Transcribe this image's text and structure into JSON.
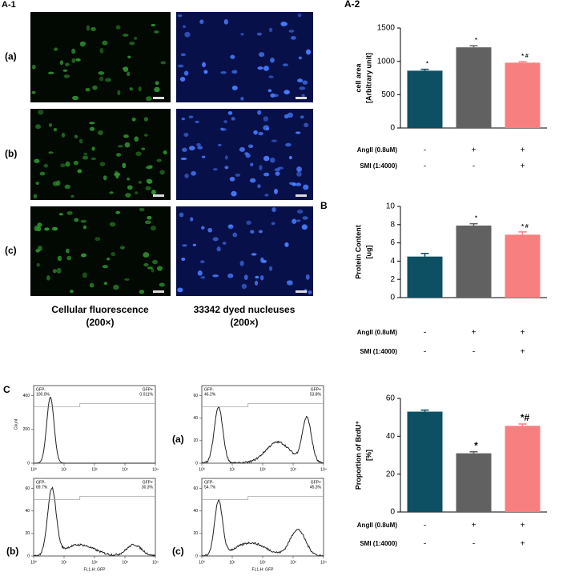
{
  "panel_a1": {
    "label": "A-1",
    "rows": [
      "(a)",
      "(b)",
      "(c)"
    ],
    "captions": [
      [
        "Cellular fluorescence",
        "(200×)"
      ],
      [
        "33342 dyed nucleuses",
        "(200×)"
      ]
    ]
  },
  "panel_c": {
    "label": "C",
    "xlabel": "FL1-H: GFP",
    "ylabel": "Count",
    "xticks": [
      "10⁰",
      "10¹",
      "10²",
      "10³",
      "10⁴"
    ],
    "histograms": [
      {
        "label": null,
        "neg": "GFP-",
        "neg_pct": "100.0%",
        "pos": "GFP+",
        "pos_pct": "0.011%",
        "yticks": [
          0,
          200,
          400
        ]
      },
      {
        "label": "(a)",
        "neg": "GFP-",
        "neg_pct": "46.2%",
        "pos": "GFP+",
        "pos_pct": "53.8%",
        "yticks": [
          0,
          20,
          40,
          60
        ]
      },
      {
        "label": "(b)",
        "neg": "GFP-",
        "neg_pct": "69.7%",
        "pos": "GFP+",
        "pos_pct": "30.3%",
        "yticks": [
          0,
          20,
          40,
          60
        ]
      },
      {
        "label": "(c)",
        "neg": "GFP-",
        "neg_pct": "54.7%",
        "pos": "GFP+",
        "pos_pct": "45.3%",
        "yticks": [
          0,
          20,
          40,
          60
        ]
      }
    ]
  },
  "chart_data": [
    {
      "type": "bar",
      "panel_label": "A-2",
      "ylabel": [
        "cell area",
        "[Arbitrary unit]"
      ],
      "values": [
        860,
        1210,
        980
      ],
      "errors": [
        20,
        25,
        15
      ],
      "annotations": [
        "*",
        "*",
        "* #"
      ],
      "colors": [
        "#0d4f63",
        "#616161",
        "#f77f7f"
      ],
      "ylim": [
        0,
        1500
      ],
      "yticks": [
        0,
        500,
        1000,
        1500
      ],
      "conditions": [
        {
          "name": "AngII (0.8uM)",
          "values": [
            "-",
            "+",
            "+"
          ]
        },
        {
          "name": "SMI (1:4000)",
          "values": [
            "-",
            "-",
            "+"
          ]
        }
      ]
    },
    {
      "type": "bar",
      "panel_label": "B",
      "ylabel": [
        "Protein Content",
        "[ug]"
      ],
      "values": [
        4.5,
        7.9,
        6.9
      ],
      "errors": [
        0.35,
        0.2,
        0.3
      ],
      "annotations": [
        null,
        "*",
        "* #"
      ],
      "colors": [
        "#0d4f63",
        "#616161",
        "#f77f7f"
      ],
      "ylim": [
        0,
        10
      ],
      "yticks": [
        0,
        2,
        4,
        6,
        8,
        10
      ],
      "conditions": [
        {
          "name": "AngII (0.8uM)",
          "values": [
            "-",
            "+",
            "+"
          ]
        },
        {
          "name": "SMI (1:4000)",
          "values": [
            "-",
            "-",
            "+"
          ]
        }
      ]
    },
    {
      "type": "bar",
      "panel_label": null,
      "ylabel": [
        "Proportion of BrdU⁺",
        "[%]"
      ],
      "values": [
        53,
        31,
        45.5
      ],
      "errors": [
        0.8,
        0.8,
        1
      ],
      "annotations": [
        null,
        "*",
        "*#"
      ],
      "colors": [
        "#0d4f63",
        "#616161",
        "#f77f7f"
      ],
      "ylim": [
        0,
        60
      ],
      "yticks": [
        0,
        20,
        40,
        60
      ],
      "conditions": [
        {
          "name": "AngII (0.8uM)",
          "values": [
            "-",
            "+",
            "+"
          ]
        },
        {
          "name": "SMI (1:4000)",
          "values": [
            "-",
            "-",
            "+"
          ]
        }
      ]
    }
  ]
}
